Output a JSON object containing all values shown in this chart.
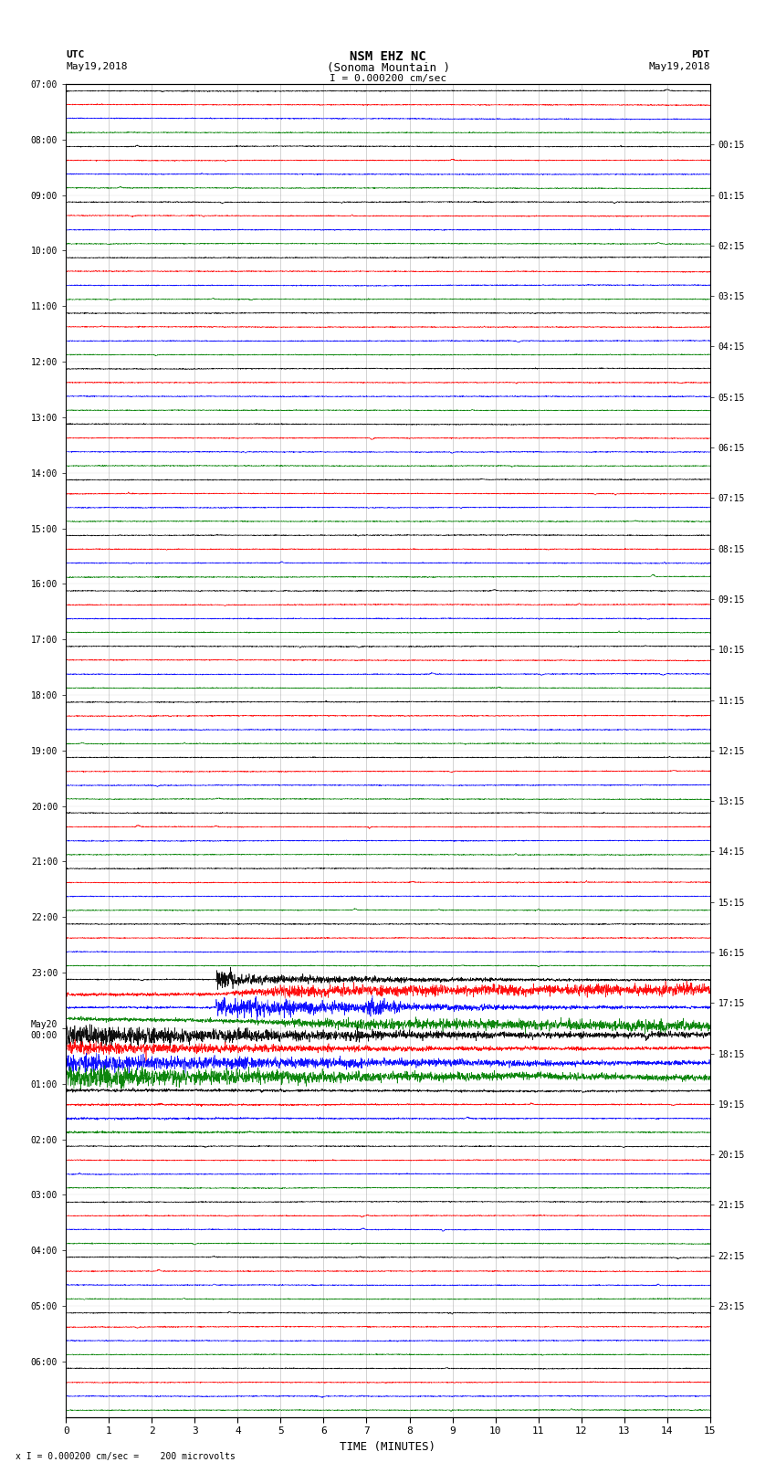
{
  "title_line1": "NSM EHZ NC",
  "title_line2": "(Sonoma Mountain )",
  "scale_label": "I = 0.000200 cm/sec",
  "footer_label": "x I = 0.000200 cm/sec =    200 microvolts",
  "xlabel": "TIME (MINUTES)",
  "left_times_utc": [
    "07:00",
    "08:00",
    "09:00",
    "10:00",
    "11:00",
    "12:00",
    "13:00",
    "14:00",
    "15:00",
    "16:00",
    "17:00",
    "18:00",
    "19:00",
    "20:00",
    "21:00",
    "22:00",
    "23:00",
    "May20\n00:00",
    "01:00",
    "02:00",
    "03:00",
    "04:00",
    "05:00",
    "06:00"
  ],
  "right_times_pdt": [
    "00:15",
    "01:15",
    "02:15",
    "03:15",
    "04:15",
    "05:15",
    "06:15",
    "07:15",
    "08:15",
    "09:15",
    "10:15",
    "11:15",
    "12:15",
    "13:15",
    "14:15",
    "15:15",
    "16:15",
    "17:15",
    "18:15",
    "19:15",
    "20:15",
    "21:15",
    "22:15",
    "23:15"
  ],
  "n_rows": 24,
  "n_traces_per_row": 4,
  "colors": [
    "black",
    "red",
    "blue",
    "green"
  ],
  "xmin": 0,
  "xmax": 15,
  "background_color": "white",
  "grid_color": "#999999",
  "figsize": [
    8.5,
    16.13
  ],
  "dpi": 100
}
